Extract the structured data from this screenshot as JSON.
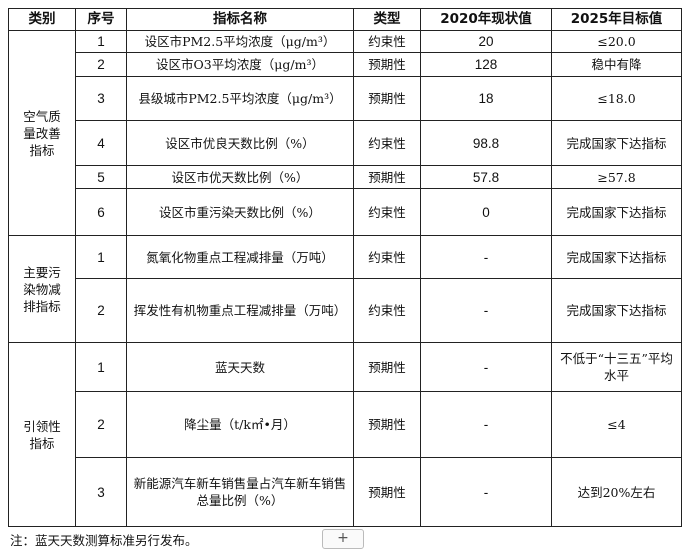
{
  "headers": [
    "类别",
    "序号",
    "指标名称",
    "类型",
    "2020年现状值",
    "2025年目标值"
  ],
  "groups": [
    {
      "category": "空气质量改善指标",
      "rows": [
        {
          "no": "1",
          "name": "设区市PM2.5平均浓度（μg/m³）",
          "type": "约束性",
          "v2020": "20",
          "v2025": "≤20.0"
        },
        {
          "no": "2",
          "name": "设区市O3平均浓度（μg/m³）",
          "type": "预期性",
          "v2020": "128",
          "v2025": "稳中有降"
        },
        {
          "no": "3",
          "name": "县级城市PM2.5平均浓度（μg/m³）",
          "type": "预期性",
          "v2020": "18",
          "v2025": "≤18.0"
        },
        {
          "no": "4",
          "name": "设区市优良天数比例（%）",
          "type": "约束性",
          "v2020": "98.8",
          "v2025": "完成国家下达指标"
        },
        {
          "no": "5",
          "name": "设区市优天数比例（%）",
          "type": "预期性",
          "v2020": "57.8",
          "v2025": "≥57.8"
        },
        {
          "no": "6",
          "name": "设区市重污染天数比例（%）",
          "type": "约束性",
          "v2020": "0",
          "v2025": "完成国家下达指标"
        }
      ]
    },
    {
      "category": "主要污染物减排指标",
      "rows": [
        {
          "no": "1",
          "name": "氮氧化物重点工程减排量（万吨）",
          "type": "约束性",
          "v2020": "-",
          "v2025": "完成国家下达指标"
        },
        {
          "no": "2",
          "name": "挥发性有机物重点工程减排量（万吨）",
          "type": "约束性",
          "v2020": "-",
          "v2025": "完成国家下达指标"
        }
      ]
    },
    {
      "category": "引领性指标",
      "rows": [
        {
          "no": "1",
          "name": "蓝天天数",
          "type": "预期性",
          "v2020": "-",
          "v2025": "不低于“十三五”平均水平"
        },
        {
          "no": "2",
          "name": "降尘量（t/k㎡•月）",
          "type": "预期性",
          "v2020": "-",
          "v2025": "≤4"
        },
        {
          "no": "3",
          "name": "新能源汽车新车销售量占汽车新车销售总量比例（%）",
          "type": "预期性",
          "v2020": "-",
          "v2025": "达到20%左右"
        }
      ]
    }
  ],
  "note": "注：蓝天天数测算标准另行发布。",
  "add_button": "+"
}
